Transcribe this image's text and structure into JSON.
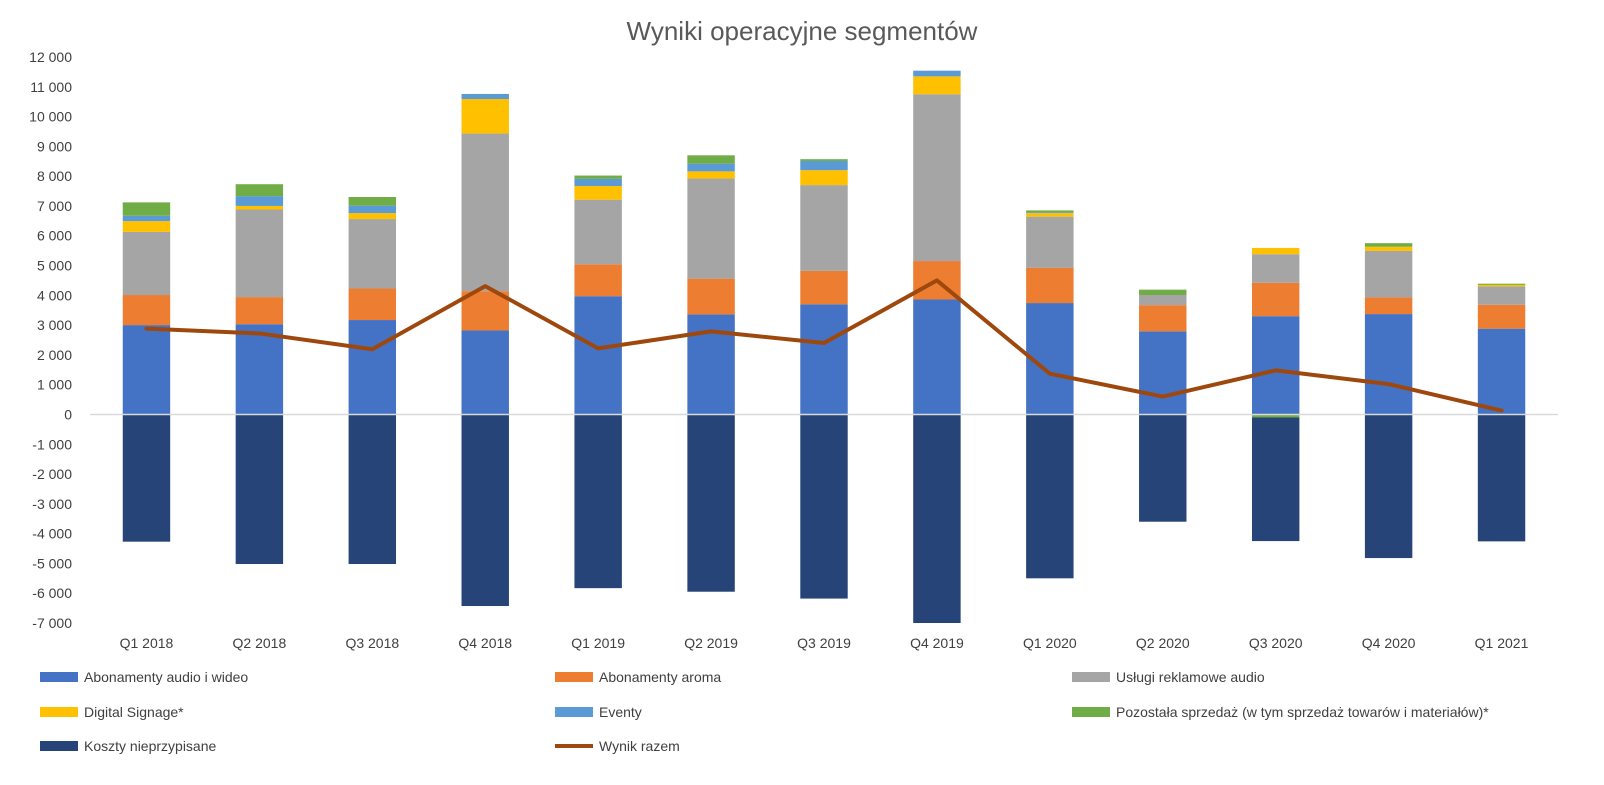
{
  "chart_data": {
    "type": "bar",
    "stacked": true,
    "title": "Wyniki operacyjne segmentów",
    "categories": [
      "Q1 2018",
      "Q2 2018",
      "Q3 2018",
      "Q4 2018",
      "Q1 2019",
      "Q2 2019",
      "Q3 2019",
      "Q4 2019",
      "Q1 2020",
      "Q2 2020",
      "Q3 2020",
      "Q4 2020",
      "Q1 2021"
    ],
    "ylim": [
      -7000,
      12000
    ],
    "yticks": [
      12000,
      11000,
      10000,
      9000,
      8000,
      7000,
      6000,
      5000,
      4000,
      3000,
      2000,
      1000,
      0,
      -1000,
      -2000,
      -3000,
      -4000,
      -5000,
      -6000,
      -7000
    ],
    "ytick_labels": [
      "12 000",
      "11 000",
      "10 000",
      "9 000",
      "8 000",
      "7 000",
      "6 000",
      "5 000",
      "4 000",
      "3 000",
      "2 000",
      "1 000",
      "0",
      "-1 000",
      "-2 000",
      "-3 000",
      "-4 000",
      "-5 000",
      "-6 000",
      "-7 000"
    ],
    "grid": false,
    "legend_position": "bottom",
    "series": [
      {
        "name": "Abonamenty audio i wideo",
        "color": "#4472C4",
        "values": [
          3000,
          3030,
          3170,
          2820,
          3970,
          3360,
          3700,
          3860,
          3740,
          2790,
          3300,
          3370,
          2880
        ]
      },
      {
        "name": "Abonamenty aroma",
        "color": "#ED7D31",
        "values": [
          1010,
          910,
          1060,
          1320,
          1070,
          1200,
          1120,
          1290,
          1180,
          880,
          1120,
          560,
          800
        ]
      },
      {
        "name": "Usługi reklamowe audio",
        "color": "#A5A5A5",
        "values": [
          2120,
          2940,
          2330,
          5290,
          2170,
          3360,
          2880,
          5600,
          1720,
          340,
          960,
          1560,
          620
        ]
      },
      {
        "name": "Digital Signage*",
        "color": "#FFC000",
        "values": [
          360,
          120,
          200,
          1160,
          460,
          240,
          500,
          600,
          120,
          0,
          210,
          140,
          50
        ]
      },
      {
        "name": "Eventy",
        "color": "#5B9BD5",
        "values": [
          180,
          330,
          250,
          170,
          240,
          260,
          310,
          190,
          30,
          0,
          0,
          0,
          0
        ]
      },
      {
        "name": "Pozostała sprzedaż (w tym sprzedaż towarów i materiałów)*",
        "color": "#70AD47",
        "values": [
          450,
          400,
          290,
          0,
          110,
          280,
          60,
          0,
          60,
          180,
          -100,
          120,
          40
        ]
      },
      {
        "name": "Koszty nieprzypisane",
        "color": "#264478",
        "values": [
          -4270,
          -5020,
          -5020,
          -6430,
          -5830,
          -5950,
          -6180,
          -7000,
          -5500,
          -3600,
          -4150,
          -4820,
          -4260
        ]
      }
    ],
    "line_series": {
      "name": "Wynik razem",
      "color": "#9E480E",
      "values": [
        2880,
        2720,
        2190,
        4310,
        2220,
        2790,
        2400,
        4500,
        1370,
        600,
        1480,
        1020,
        130
      ]
    }
  }
}
